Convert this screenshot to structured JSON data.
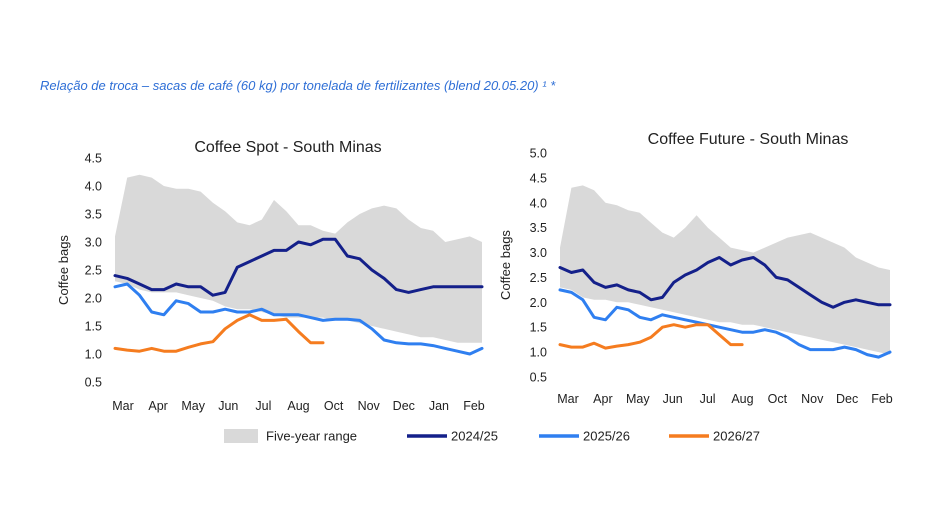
{
  "header": {
    "text": "Relação de troca – sacas de café (60 kg) por tonelada de fertilizantes (blend 20.05.20) ¹ *"
  },
  "legend": {
    "items": [
      {
        "label": "Five-year range",
        "color": "#d9d9d9",
        "kind": "area"
      },
      {
        "label": "2024/25",
        "color": "#14208a",
        "kind": "line"
      },
      {
        "label": "2025/26",
        "color": "#2f7ff0",
        "kind": "line"
      },
      {
        "label": "2026/27",
        "color": "#f57c1f",
        "kind": "line"
      }
    ]
  },
  "chart_data": [
    {
      "type": "line",
      "title": "Coffee Spot - South Minas",
      "ylabel": "Coffee bags",
      "xlabel": "",
      "ylim": [
        0.5,
        4.5
      ],
      "yticks": [
        "0.5",
        "1.0",
        "1.5",
        "2.0",
        "2.5",
        "3.0",
        "3.5",
        "4.0",
        "4.5"
      ],
      "xticks": [
        "Mar",
        "Apr",
        "May",
        "Jun",
        "Jul",
        "Aug",
        "Oct",
        "Nov",
        "Dec",
        "Jan",
        "Feb"
      ],
      "range_upper": [
        3.1,
        4.15,
        4.2,
        4.15,
        4.0,
        3.95,
        3.95,
        3.9,
        3.7,
        3.55,
        3.35,
        3.3,
        3.4,
        3.75,
        3.55,
        3.3,
        3.3,
        3.2,
        3.15,
        3.35,
        3.5,
        3.6,
        3.65,
        3.6,
        3.4,
        3.25,
        3.2,
        3.0,
        3.05,
        3.1,
        3.0
      ],
      "range_lower": [
        2.3,
        2.25,
        2.15,
        2.1,
        2.1,
        2.1,
        2.05,
        2.0,
        1.95,
        1.85,
        1.8,
        1.8,
        1.75,
        1.7,
        1.65,
        1.65,
        1.65,
        1.65,
        1.6,
        1.6,
        1.55,
        1.5,
        1.45,
        1.4,
        1.35,
        1.3,
        1.3,
        1.25,
        1.2,
        1.2,
        1.2
      ],
      "series": [
        {
          "name": "2024/25",
          "values": [
            2.4,
            2.35,
            2.25,
            2.15,
            2.15,
            2.25,
            2.2,
            2.2,
            2.05,
            2.1,
            2.55,
            2.65,
            2.75,
            2.85,
            2.85,
            3.0,
            2.95,
            3.05,
            3.05,
            2.75,
            2.7,
            2.5,
            2.35,
            2.15,
            2.1,
            2.15,
            2.2,
            2.2,
            2.2,
            2.2,
            2.2
          ]
        },
        {
          "name": "2025/26",
          "values": [
            2.2,
            2.25,
            2.05,
            1.75,
            1.7,
            1.95,
            1.9,
            1.75,
            1.75,
            1.8,
            1.75,
            1.75,
            1.8,
            1.7,
            1.7,
            1.7,
            1.65,
            1.6,
            1.62,
            1.62,
            1.6,
            1.45,
            1.25,
            1.2,
            1.18,
            1.18,
            1.15,
            1.1,
            1.05,
            1.0,
            1.1
          ]
        },
        {
          "name": "2026/27",
          "values": [
            1.1,
            1.07,
            1.05,
            1.1,
            1.05,
            1.05,
            1.12,
            1.18,
            1.22,
            1.45,
            1.6,
            1.7,
            1.6,
            1.6,
            1.62,
            1.4,
            1.2,
            1.2
          ]
        }
      ]
    },
    {
      "type": "line",
      "title": "Coffee Future  - South Minas",
      "ylabel": "Coffee bags",
      "xlabel": "",
      "ylim": [
        0.5,
        5.0
      ],
      "yticks": [
        "0.5",
        "1.0",
        "1.5",
        "2.0",
        "2.5",
        "3.0",
        "3.5",
        "4.0",
        "4.5",
        "5.0"
      ],
      "xticks": [
        "Mar",
        "Apr",
        "May",
        "Jun",
        "Jul",
        "Aug",
        "Oct",
        "Nov",
        "Dec",
        "Feb"
      ],
      "range_upper": [
        3.1,
        4.3,
        4.35,
        4.25,
        4.0,
        3.95,
        3.85,
        3.8,
        3.6,
        3.4,
        3.3,
        3.5,
        3.75,
        3.5,
        3.3,
        3.1,
        3.05,
        3.0,
        3.1,
        3.2,
        3.3,
        3.35,
        3.4,
        3.3,
        3.2,
        3.1,
        2.9,
        2.8,
        2.7,
        2.65
      ],
      "range_lower": [
        2.3,
        2.25,
        2.1,
        2.05,
        2.05,
        2.0,
        2.0,
        1.95,
        1.9,
        1.85,
        1.8,
        1.75,
        1.7,
        1.65,
        1.6,
        1.6,
        1.55,
        1.55,
        1.5,
        1.45,
        1.4,
        1.35,
        1.3,
        1.25,
        1.2,
        1.15,
        1.1,
        1.05,
        1.0,
        0.95
      ],
      "series": [
        {
          "name": "2024/25",
          "values": [
            2.7,
            2.6,
            2.65,
            2.4,
            2.3,
            2.35,
            2.25,
            2.2,
            2.05,
            2.1,
            2.4,
            2.55,
            2.65,
            2.8,
            2.9,
            2.75,
            2.85,
            2.9,
            2.75,
            2.5,
            2.45,
            2.3,
            2.15,
            2.0,
            1.9,
            2.0,
            2.05,
            2.0,
            1.95,
            1.95
          ]
        },
        {
          "name": "2025/26",
          "values": [
            2.25,
            2.2,
            2.05,
            1.7,
            1.65,
            1.9,
            1.85,
            1.7,
            1.65,
            1.75,
            1.7,
            1.65,
            1.6,
            1.55,
            1.5,
            1.45,
            1.4,
            1.4,
            1.45,
            1.4,
            1.3,
            1.15,
            1.05,
            1.05,
            1.05,
            1.1,
            1.05,
            0.95,
            0.9,
            1.0
          ]
        },
        {
          "name": "2026/27",
          "values": [
            1.15,
            1.1,
            1.1,
            1.18,
            1.08,
            1.12,
            1.15,
            1.2,
            1.3,
            1.5,
            1.55,
            1.5,
            1.55,
            1.55,
            1.35,
            1.15,
            1.15
          ]
        }
      ]
    }
  ]
}
